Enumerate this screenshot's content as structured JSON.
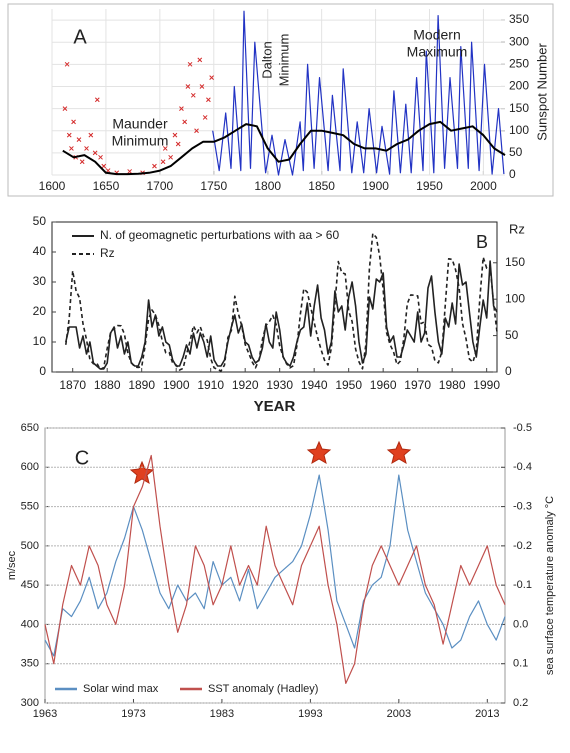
{
  "chart_data": [
    {
      "type": "line",
      "yaxis": "right",
      "grid": true,
      "xlim": [
        1600,
        2020
      ],
      "xticks": [
        1600,
        1650,
        1700,
        1750,
        1800,
        1850,
        1900,
        1950,
        2000
      ],
      "ylim": [
        0,
        375
      ],
      "yticks": [
        0,
        50,
        100,
        150,
        200,
        250,
        300,
        350
      ],
      "ylabel": "Sunspot Number",
      "annotations": [
        "A",
        "Maunder",
        "Minimum",
        "Dalton",
        "Minimum",
        "Modern",
        "Maximum"
      ],
      "series": [
        {
          "marker": "x",
          "color": "#d42a2a",
          "x": [
            1612,
            1614,
            1616,
            1618,
            1620,
            1622,
            1625,
            1628,
            1632,
            1636,
            1640,
            1642,
            1645,
            1648,
            1652,
            1660,
            1672,
            1684,
            1695,
            1703,
            1705,
            1710,
            1714,
            1717,
            1720,
            1723,
            1726,
            1728,
            1731,
            1734,
            1737,
            1739,
            1742,
            1745,
            1748
          ],
          "values": [
            150,
            250,
            90,
            60,
            120,
            40,
            80,
            30,
            60,
            90,
            50,
            170,
            40,
            20,
            10,
            5,
            8,
            5,
            20,
            30,
            60,
            40,
            90,
            70,
            150,
            120,
            200,
            250,
            180,
            100,
            260,
            200,
            130,
            170,
            220
          ]
        },
        {
          "color": "#2233c4",
          "x": [
            1749,
            1755,
            1761,
            1766,
            1769,
            1775,
            1778,
            1784,
            1788,
            1798,
            1804,
            1810,
            1816,
            1823,
            1830,
            1833,
            1837,
            1843,
            1848,
            1856,
            1860,
            1867,
            1870,
            1878,
            1883,
            1889,
            1894,
            1901,
            1906,
            1913,
            1917,
            1923,
            1928,
            1933,
            1938,
            1944,
            1947,
            1954,
            1958,
            1964,
            1969,
            1976,
            1979,
            1986,
            1989,
            1996,
            2001,
            2008,
            2014,
            2019
          ],
          "values": [
            100,
            10,
            140,
            15,
            200,
            10,
            370,
            15,
            300,
            5,
            90,
            0,
            80,
            0,
            120,
            10,
            250,
            15,
            220,
            10,
            180,
            10,
            240,
            5,
            120,
            5,
            150,
            5,
            110,
            2,
            190,
            5,
            160,
            5,
            220,
            10,
            280,
            5,
            360,
            15,
            220,
            15,
            290,
            15,
            300,
            10,
            250,
            2,
            150,
            2
          ]
        },
        {
          "color": "#000000",
          "x": [
            1610,
            1620,
            1630,
            1640,
            1650,
            1660,
            1670,
            1680,
            1690,
            1700,
            1710,
            1720,
            1730,
            1740,
            1750,
            1760,
            1770,
            1780,
            1790,
            1800,
            1810,
            1820,
            1830,
            1840,
            1850,
            1860,
            1870,
            1880,
            1890,
            1900,
            1910,
            1920,
            1930,
            1940,
            1950,
            1960,
            1970,
            1980,
            1990,
            2000,
            2010,
            2020
          ],
          "values": [
            55,
            40,
            45,
            30,
            5,
            2,
            2,
            3,
            5,
            10,
            20,
            40,
            60,
            75,
            75,
            85,
            100,
            115,
            110,
            60,
            30,
            35,
            70,
            100,
            100,
            95,
            90,
            70,
            60,
            60,
            55,
            70,
            80,
            100,
            115,
            120,
            100,
            105,
            110,
            90,
            60,
            45
          ]
        }
      ]
    },
    {
      "type": "line",
      "grid": false,
      "xlim": [
        1864,
        1993
      ],
      "xticks": [
        1870,
        1880,
        1890,
        1900,
        1910,
        1920,
        1930,
        1940,
        1950,
        1960,
        1970,
        1980,
        1990
      ],
      "ylim": [
        0,
        50
      ],
      "yticks": [
        0,
        10,
        20,
        30,
        40,
        50
      ],
      "y2lim": [
        0,
        206
      ],
      "y2ticks": [
        0,
        50,
        100,
        150
      ],
      "xlabel": "YEAR",
      "y2label": "Rz",
      "annotations": [
        "B"
      ],
      "x": [
        1868,
        1869,
        1870,
        1871,
        1872,
        1873,
        1874,
        1875,
        1876,
        1877,
        1878,
        1879,
        1880,
        1881,
        1882,
        1883,
        1884,
        1885,
        1886,
        1887,
        1888,
        1889,
        1890,
        1891,
        1892,
        1893,
        1894,
        1895,
        1896,
        1897,
        1898,
        1899,
        1900,
        1901,
        1902,
        1903,
        1904,
        1905,
        1906,
        1907,
        1908,
        1909,
        1910,
        1911,
        1912,
        1913,
        1914,
        1915,
        1916,
        1917,
        1918,
        1919,
        1920,
        1921,
        1922,
        1923,
        1924,
        1925,
        1926,
        1927,
        1928,
        1929,
        1930,
        1931,
        1932,
        1933,
        1934,
        1935,
        1936,
        1937,
        1938,
        1939,
        1940,
        1941,
        1942,
        1943,
        1944,
        1945,
        1946,
        1947,
        1948,
        1949,
        1950,
        1951,
        1952,
        1953,
        1954,
        1955,
        1956,
        1957,
        1958,
        1959,
        1960,
        1961,
        1962,
        1963,
        1964,
        1965,
        1966,
        1967,
        1968,
        1969,
        1970,
        1971,
        1972,
        1973,
        1974,
        1975,
        1976,
        1977,
        1978,
        1979,
        1980,
        1981,
        1982,
        1983,
        1984,
        1985,
        1986,
        1987,
        1988,
        1989,
        1990,
        1991,
        1992,
        1993
      ],
      "series": [
        {
          "name": "N. of geomagnetic perturbations with aa > 60",
          "color": "#222222",
          "values": [
            10,
            15,
            15,
            15,
            8,
            12,
            6,
            10,
            3,
            2,
            1,
            1,
            3,
            13,
            15,
            8,
            12,
            6,
            10,
            3,
            2,
            2,
            5,
            10,
            24,
            15,
            19,
            12,
            15,
            10,
            9,
            4,
            2,
            2,
            5,
            9,
            6,
            13,
            8,
            13,
            10,
            5,
            12,
            4,
            2,
            2,
            4,
            10,
            15,
            19,
            13,
            16,
            10,
            9,
            5,
            3,
            4,
            8,
            16,
            10,
            8,
            20,
            14,
            5,
            3,
            2,
            5,
            10,
            14,
            15,
            23,
            12,
            22,
            29,
            18,
            14,
            6,
            10,
            27,
            20,
            22,
            14,
            25,
            30,
            22,
            10,
            3,
            6,
            25,
            21,
            31,
            30,
            33,
            15,
            10,
            12,
            5,
            5,
            9,
            14,
            12,
            10,
            20,
            10,
            13,
            28,
            32,
            20,
            10,
            6,
            18,
            15,
            23,
            16,
            36,
            29,
            30,
            20,
            10,
            5,
            15,
            24,
            18,
            37,
            22,
            20
          ]
        },
        {
          "name": "Rz",
          "color": "#222222",
          "dash": true,
          "axis": "y2",
          "values": [
            37.3,
            73.9,
            139.1,
            111.2,
            101.6,
            66.2,
            44.7,
            17.0,
            11.3,
            12.4,
            3.4,
            6.0,
            32.3,
            54.3,
            59.7,
            63.7,
            63.5,
            52.2,
            25.4,
            13.1,
            6.8,
            6.3,
            7.1,
            35.6,
            73.0,
            85.1,
            78.0,
            64.0,
            41.8,
            26.2,
            26.7,
            12.1,
            9.5,
            2.7,
            5.0,
            24.4,
            42.0,
            63.5,
            53.8,
            62.0,
            48.5,
            43.9,
            18.6,
            5.7,
            3.6,
            1.4,
            9.6,
            47.4,
            57.1,
            103.9,
            80.6,
            63.6,
            37.6,
            26.1,
            14.2,
            5.8,
            16.7,
            44.3,
            63.9,
            69.0,
            77.8,
            64.9,
            35.7,
            21.2,
            11.1,
            5.7,
            8.7,
            36.1,
            79.7,
            114.4,
            109.6,
            88.8,
            67.8,
            47.5,
            30.6,
            16.3,
            9.6,
            33.2,
            92.6,
            151.6,
            136.3,
            134.7,
            83.9,
            69.4,
            31.5,
            13.9,
            4.4,
            38.0,
            141.7,
            190.2,
            184.8,
            159.0,
            112.3,
            53.9,
            37.5,
            27.9,
            10.2,
            15.1,
            47.0,
            93.8,
            105.9,
            105.5,
            104.5,
            66.6,
            68.9,
            38.0,
            34.5,
            15.5,
            12.6,
            27.5,
            92.5,
            155.4,
            154.6,
            140.4,
            115.9,
            66.6,
            45.9,
            17.9,
            13.4,
            29.4,
            100.2,
            157.6,
            142.6,
            145.7,
            94.3,
            54.6
          ]
        }
      ]
    },
    {
      "type": "line",
      "grid": true,
      "xlim": [
        1963,
        2015
      ],
      "xticks": [
        1963,
        1973,
        1983,
        1993,
        2003,
        2013
      ],
      "ylim": [
        300,
        650
      ],
      "yticks": [
        300,
        350,
        400,
        450,
        500,
        550,
        600,
        650
      ],
      "y2lim": [
        0.2,
        -0.5
      ],
      "y2ticks": [
        0.2,
        0.1,
        {
          "value": 0,
          "label": "0.0"
        },
        -0.1,
        -0.2,
        -0.3,
        -0.4,
        -0.5
      ],
      "ylabel": "m/sec",
      "y2label": "sea surface  temperature anomaly °C",
      "annotations": [
        "C"
      ],
      "x": [
        1963,
        1964,
        1965,
        1966,
        1967,
        1968,
        1969,
        1970,
        1971,
        1972,
        1973,
        1974,
        1975,
        1976,
        1977,
        1978,
        1979,
        1980,
        1981,
        1982,
        1983,
        1984,
        1985,
        1986,
        1987,
        1988,
        1989,
        1990,
        1991,
        1992,
        1993,
        1994,
        1995,
        1996,
        1997,
        1998,
        1999,
        2000,
        2001,
        2002,
        2003,
        2004,
        2005,
        2006,
        2007,
        2008,
        2009,
        2010,
        2011,
        2012,
        2013,
        2014,
        2015
      ],
      "series": [
        {
          "name": "Solar  wind max",
          "color": "#5b8fc2",
          "values": [
            380,
            360,
            420,
            410,
            430,
            460,
            420,
            440,
            480,
            510,
            550,
            520,
            480,
            440,
            420,
            450,
            430,
            440,
            420,
            480,
            450,
            460,
            430,
            470,
            420,
            440,
            460,
            470,
            480,
            500,
            540,
            590,
            520,
            430,
            400,
            370,
            430,
            450,
            460,
            500,
            590,
            520,
            480,
            440,
            420,
            400,
            370,
            380,
            410,
            430,
            400,
            380,
            410
          ]
        },
        {
          "name": "SST anomaly (Hadley)",
          "color": "#c0504d",
          "axis": "y2",
          "values": [
            0.0,
            0.1,
            -0.05,
            -0.15,
            -0.1,
            -0.2,
            -0.15,
            -0.05,
            0.0,
            -0.1,
            -0.3,
            -0.35,
            -0.43,
            -0.25,
            -0.1,
            0.02,
            -0.05,
            -0.2,
            -0.15,
            -0.05,
            -0.1,
            -0.2,
            -0.1,
            -0.15,
            -0.1,
            -0.25,
            -0.15,
            -0.1,
            -0.05,
            -0.15,
            -0.2,
            -0.25,
            -0.1,
            0.0,
            0.15,
            0.1,
            -0.05,
            -0.15,
            -0.2,
            -0.15,
            -0.1,
            -0.15,
            -0.2,
            -0.1,
            -0.05,
            0.05,
            -0.05,
            -0.15,
            -0.1,
            -0.15,
            -0.2,
            -0.1,
            -0.05
          ]
        }
      ]
    }
  ]
}
